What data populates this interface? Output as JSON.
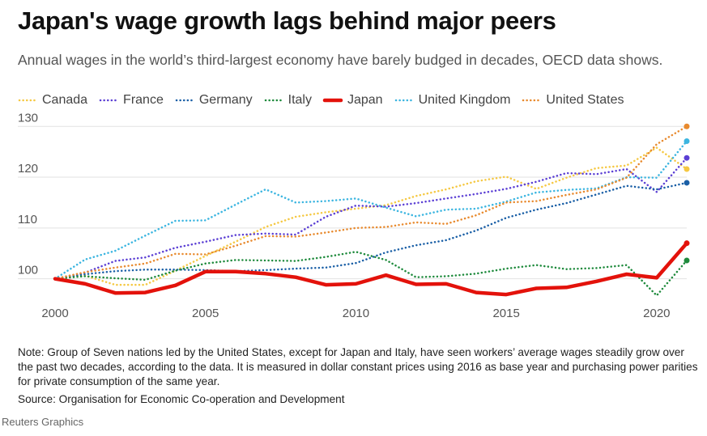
{
  "header": {
    "title": "Japan's wage growth lags behind major peers",
    "subtitle": "Annual wages in the world’s third-largest economy have barely budged in decades, OECD data shows."
  },
  "footer": {
    "note": "Note: Group of Seven nations led by the United States, except for Japan and Italy, have seen workers’ average wages steadily grow over the past two decades, according to the data. It is measured in dollar constant prices using 2016 as base year and purchasing power parities for private consumption of the same year.",
    "source": "Source: Organisation for Economic Co-operation and Development",
    "credit": "Reuters Graphics"
  },
  "chart_data": {
    "type": "line",
    "title": "Japan's wage growth lags behind major peers",
    "xlabel": "",
    "ylabel": "",
    "xlim": [
      2000,
      2021
    ],
    "ylim": [
      95,
      131
    ],
    "x_ticks": [
      2000,
      2005,
      2010,
      2015,
      2020
    ],
    "y_ticks": [
      100,
      110,
      120,
      130
    ],
    "grid": "horizontal",
    "legend_position": "top-left",
    "x": [
      2000,
      2001,
      2002,
      2003,
      2004,
      2005,
      2006,
      2007,
      2008,
      2009,
      2010,
      2011,
      2012,
      2013,
      2014,
      2015,
      2016,
      2017,
      2018,
      2019,
      2020,
      2021
    ],
    "series": [
      {
        "name": "Canada",
        "color": "#f5c842",
        "style": "dotted",
        "values": [
          100,
          100.6,
          98.8,
          98.8,
          101.6,
          104.5,
          107.3,
          110.2,
          112.2,
          113.1,
          113.8,
          114.5,
          116.3,
          117.6,
          119.2,
          120.1,
          117.7,
          119.9,
          121.8,
          122.3,
          125.8,
          121.6
        ]
      },
      {
        "name": "France",
        "color": "#5b3fd4",
        "style": "dotted",
        "values": [
          100,
          101.2,
          103.5,
          104.2,
          106.1,
          107.3,
          108.6,
          108.9,
          108.7,
          112.2,
          114.4,
          114.2,
          114.9,
          115.8,
          116.7,
          117.7,
          119.1,
          120.8,
          120.6,
          121.6,
          117.1,
          123.8
        ]
      },
      {
        "name": "Germany",
        "color": "#1a5fa6",
        "style": "dotted",
        "values": [
          100,
          100.9,
          101.5,
          101.8,
          101.8,
          101.7,
          101.5,
          101.7,
          102.0,
          102.2,
          103.1,
          105.2,
          106.6,
          107.6,
          109.5,
          112.0,
          113.6,
          114.9,
          116.6,
          118.3,
          117.6,
          118.9
        ]
      },
      {
        "name": "Italy",
        "color": "#1e8a3c",
        "style": "dotted",
        "values": [
          100,
          100.5,
          100.1,
          99.8,
          101.6,
          103.0,
          103.7,
          103.6,
          103.5,
          104.3,
          105.3,
          103.7,
          100.3,
          100.5,
          101.0,
          102.0,
          102.7,
          101.9,
          102.1,
          102.7,
          96.7,
          103.6
        ]
      },
      {
        "name": "Japan",
        "color": "#e3120b",
        "style": "solid",
        "values": [
          100,
          99.0,
          97.2,
          97.3,
          98.7,
          101.4,
          101.4,
          101.0,
          100.3,
          98.8,
          99.0,
          100.7,
          98.9,
          99.0,
          97.3,
          96.9,
          98.1,
          98.3,
          99.5,
          100.9,
          100.2,
          107.0
        ]
      },
      {
        "name": "United Kingdom",
        "color": "#3bb5e0",
        "style": "dotted",
        "values": [
          100,
          103.8,
          105.5,
          108.5,
          111.4,
          111.5,
          114.6,
          117.6,
          115.0,
          115.3,
          115.8,
          114.0,
          112.3,
          113.6,
          113.8,
          115.2,
          117.0,
          117.5,
          117.8,
          120.0,
          119.9,
          127.1
        ]
      },
      {
        "name": "United States",
        "color": "#e88a2e",
        "style": "dotted",
        "values": [
          100,
          101.3,
          102.2,
          103.0,
          104.9,
          104.8,
          106.5,
          108.4,
          108.3,
          109.1,
          110.0,
          110.2,
          111.1,
          110.8,
          112.5,
          115.0,
          115.3,
          116.5,
          117.6,
          119.9,
          126.5,
          130.0
        ]
      }
    ]
  }
}
